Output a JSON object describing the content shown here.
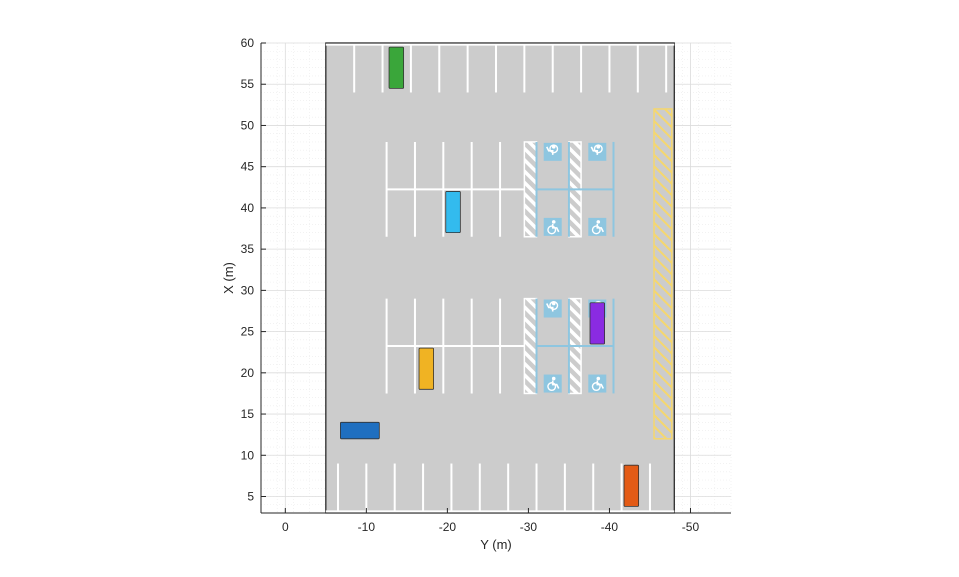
{
  "chart_data": {
    "type": "map",
    "xlabel": "Y (m)",
    "ylabel": "X (m)",
    "x_axis": {
      "lim": [
        3,
        -55
      ],
      "reversed": true,
      "ticks": [
        0,
        -10,
        -20,
        -30,
        -40,
        -50
      ],
      "tick_labels": [
        "0",
        "-10",
        "-20",
        "-30",
        "-40",
        "-50"
      ]
    },
    "y_axis": {
      "lim": [
        3,
        60
      ],
      "ticks": [
        5,
        10,
        15,
        20,
        25,
        30,
        35,
        40,
        45,
        50,
        55,
        60
      ],
      "tick_labels": [
        "5",
        "10",
        "15",
        "20",
        "25",
        "30",
        "35",
        "40",
        "45",
        "50",
        "55",
        "60"
      ]
    },
    "grid": true,
    "minor_grid": true,
    "colors": {
      "lot_surface": "#cccccc",
      "lot_border": "#1a1a1a",
      "lines": "#ffffff",
      "accessible": "#8ec6e0",
      "no_parking_zone": "#f5d76e"
    },
    "lot": {
      "y": [
        -5,
        -48
      ],
      "x": [
        3,
        60
      ]
    },
    "top_spaces": {
      "x": [
        54,
        60
      ],
      "dividers_y": [
        -8.5,
        -12,
        -15.5,
        -19,
        -22.5,
        -26,
        -29.5,
        -33,
        -36.5,
        -40,
        -43.5,
        -47
      ]
    },
    "bottom_spaces": {
      "x": [
        3,
        9
      ],
      "dividers_y": [
        -6.5,
        -10,
        -13.5,
        -17,
        -20.5,
        -24,
        -27.5,
        -31,
        -34.5,
        -38,
        -41.5,
        -45
      ]
    },
    "parking_islands": [
      {
        "x": [
          36.5,
          48
        ],
        "center_x": 42.25,
        "dividers_y": [
          -12.5,
          -16,
          -19.5,
          -23,
          -26.5,
          -30
        ]
      },
      {
        "x": [
          17.5,
          29
        ],
        "center_x": 23.25,
        "dividers_y": [
          -12.5,
          -16,
          -19.5,
          -23,
          -26.5,
          -30
        ]
      }
    ],
    "accessible_areas": [
      {
        "x": [
          36.5,
          48
        ],
        "hatched_y": [
          [
            -29.5,
            -31
          ],
          [
            -35,
            -36.5
          ]
        ],
        "boundaries_y": [
          -31,
          -35,
          -40.5
        ]
      },
      {
        "x": [
          17.5,
          29
        ],
        "hatched_y": [
          [
            -29.5,
            -31
          ],
          [
            -35,
            -36.5
          ]
        ],
        "boundaries_y": [
          -31,
          -35,
          -40.5
        ]
      }
    ],
    "no_parking_zone": {
      "y": [
        -45.5,
        -47.7
      ],
      "x": [
        12,
        52
      ]
    },
    "vehicles": [
      {
        "name": "green",
        "color": "#3aa63a",
        "y": [
          -12.8,
          -14.6
        ],
        "x": [
          54.5,
          59.5
        ]
      },
      {
        "name": "cyan",
        "color": "#33bbee",
        "y": [
          -19.8,
          -21.6
        ],
        "x": [
          37,
          42
        ]
      },
      {
        "name": "purple",
        "color": "#8a2be2",
        "y": [
          -37.6,
          -39.4
        ],
        "x": [
          23.5,
          28.5
        ]
      },
      {
        "name": "yellow",
        "color": "#f0b323",
        "y": [
          -16.5,
          -18.3
        ],
        "x": [
          18,
          23
        ]
      },
      {
        "name": "blue",
        "color": "#1f6fc0",
        "y": [
          -6.8,
          -11.6
        ],
        "x": [
          12,
          14
        ]
      },
      {
        "name": "orange",
        "color": "#e35b16",
        "y": [
          -41.8,
          -43.6
        ],
        "x": [
          3.8,
          8.8
        ]
      }
    ]
  }
}
